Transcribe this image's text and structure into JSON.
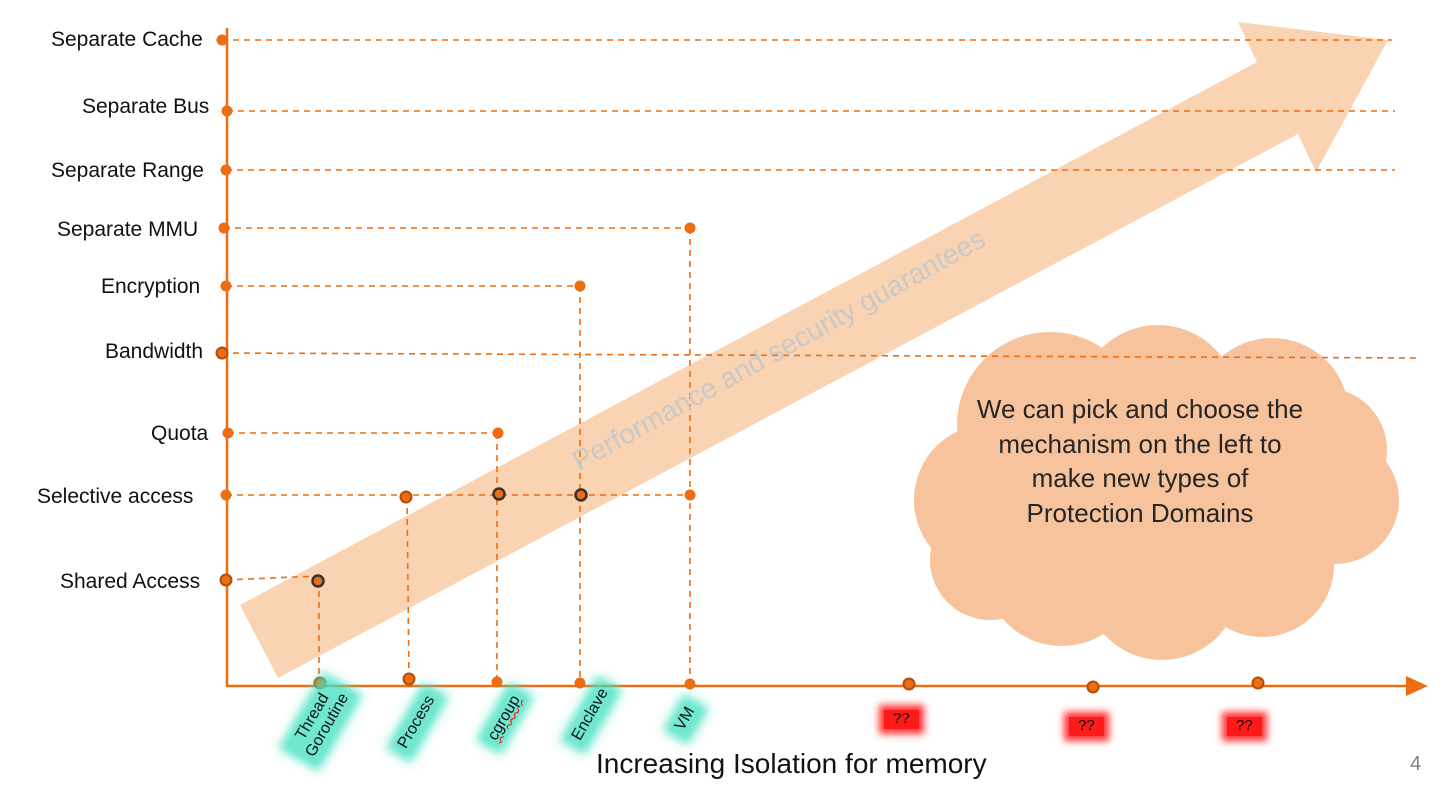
{
  "y_levels": [
    {
      "label": "Separate Cache"
    },
    {
      "label": "Separate Bus"
    },
    {
      "label": "Separate Range"
    },
    {
      "label": "Separate MMU"
    },
    {
      "label": "Encryption"
    },
    {
      "label": "Bandwidth"
    },
    {
      "label": "Quota"
    },
    {
      "label": "Selective access"
    },
    {
      "label": "Shared Access"
    }
  ],
  "x_items": [
    {
      "line1": "Thread",
      "line2": "Goroutine"
    },
    {
      "line1": "Process"
    },
    {
      "line1": "cgroup"
    },
    {
      "line1": "Enclave"
    },
    {
      "line1": "VM"
    },
    {
      "line1": "??"
    },
    {
      "line1": "??"
    },
    {
      "line1": "??"
    }
  ],
  "axis_title": "Increasing Isolation for memory",
  "arrow_label": "Performance and security guarantees",
  "cloud_text": "We can pick and choose the mechanism on the left to make new types of Protection Domains",
  "page_number": "4",
  "mappings": [
    {
      "item": "Thread / Goroutine",
      "levels": [
        "Shared Access"
      ]
    },
    {
      "item": "Process",
      "levels": [
        "Selective access"
      ]
    },
    {
      "item": "cgroup",
      "levels": [
        "Selective access",
        "Quota"
      ]
    },
    {
      "item": "Enclave",
      "levels": [
        "Selective access",
        "Encryption"
      ]
    },
    {
      "item": "VM",
      "levels": [
        "Selective access",
        "Separate MMU"
      ]
    }
  ],
  "colors": {
    "accent": "#ed6d12",
    "dot_dark": "#b44d0b",
    "arrow_fill": "#f9cfaa",
    "cloud_fill": "#f7c39c",
    "highlight_teal": "#40e0c0",
    "highlight_red": "#ff1a1a",
    "arrow_text": "#c9c9c9"
  }
}
